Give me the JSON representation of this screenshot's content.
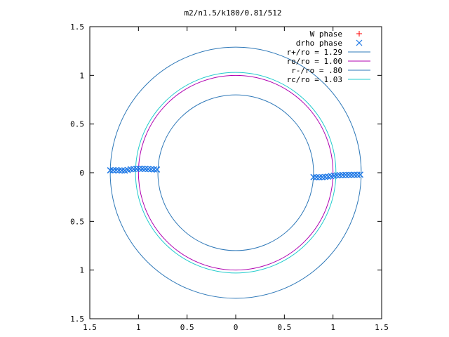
{
  "chart_data": {
    "type": "scatter",
    "title": "m2/n1.5/k180/0.81/512",
    "xlim": [
      -1.5,
      1.5
    ],
    "ylim": [
      -1.5,
      1.5
    ],
    "x_ticks": [
      -1.5,
      -1,
      -0.5,
      0,
      0.5,
      1,
      1.5
    ],
    "y_ticks": [
      -1.5,
      -1,
      -0.5,
      0,
      0.5,
      1,
      1.5
    ],
    "x_tick_labels": [
      "1.5",
      "1",
      "0.5",
      "0",
      "0.5",
      "1",
      "1.5"
    ],
    "y_tick_labels": [
      "1.5",
      "1",
      "0.5",
      "0",
      "0.5",
      "1",
      "1.5"
    ],
    "grid": false,
    "legend_position": "top-right",
    "series": [
      {
        "name": "W phase",
        "kind": "points",
        "marker": "plus",
        "color": "#ff0000",
        "points": []
      },
      {
        "name": "drho phase",
        "kind": "points",
        "marker": "cross",
        "color": "#1e78e6",
        "points": [
          [
            -1.29,
            0.025
          ],
          [
            -1.26,
            0.025
          ],
          [
            -1.23,
            0.026
          ],
          [
            -1.2,
            0.024
          ],
          [
            -1.17,
            0.023
          ],
          [
            -1.14,
            0.022
          ],
          [
            -1.11,
            0.028
          ],
          [
            -1.08,
            0.035
          ],
          [
            -1.05,
            0.038
          ],
          [
            -1.02,
            0.04
          ],
          [
            -0.99,
            0.041
          ],
          [
            -0.96,
            0.04
          ],
          [
            -0.93,
            0.039
          ],
          [
            -0.9,
            0.038
          ],
          [
            -0.87,
            0.036
          ],
          [
            -0.84,
            0.034
          ],
          [
            -0.81,
            0.033
          ],
          [
            0.8,
            -0.045
          ],
          [
            0.83,
            -0.046
          ],
          [
            0.86,
            -0.047
          ],
          [
            0.89,
            -0.046
          ],
          [
            0.92,
            -0.043
          ],
          [
            0.95,
            -0.04
          ],
          [
            0.98,
            -0.035
          ],
          [
            1.01,
            -0.03
          ],
          [
            1.04,
            -0.027
          ],
          [
            1.07,
            -0.025
          ],
          [
            1.1,
            -0.024
          ],
          [
            1.13,
            -0.023
          ],
          [
            1.16,
            -0.022
          ],
          [
            1.19,
            -0.022
          ],
          [
            1.22,
            -0.021
          ],
          [
            1.25,
            -0.021
          ],
          [
            1.28,
            -0.02
          ]
        ]
      },
      {
        "name": "r+/ro = 1.29",
        "kind": "circle",
        "radius": 1.29,
        "color": "#2e78b8"
      },
      {
        "name": "ro/ro = 1.00",
        "kind": "circle",
        "radius": 1.0,
        "color": "#b000b0"
      },
      {
        "name": "r-/ro = .80",
        "kind": "circle",
        "radius": 0.8,
        "color": "#2e78b8"
      },
      {
        "name": "rc/ro = 1.03",
        "kind": "circle",
        "radius": 1.03,
        "color": "#22cccc"
      }
    ]
  }
}
